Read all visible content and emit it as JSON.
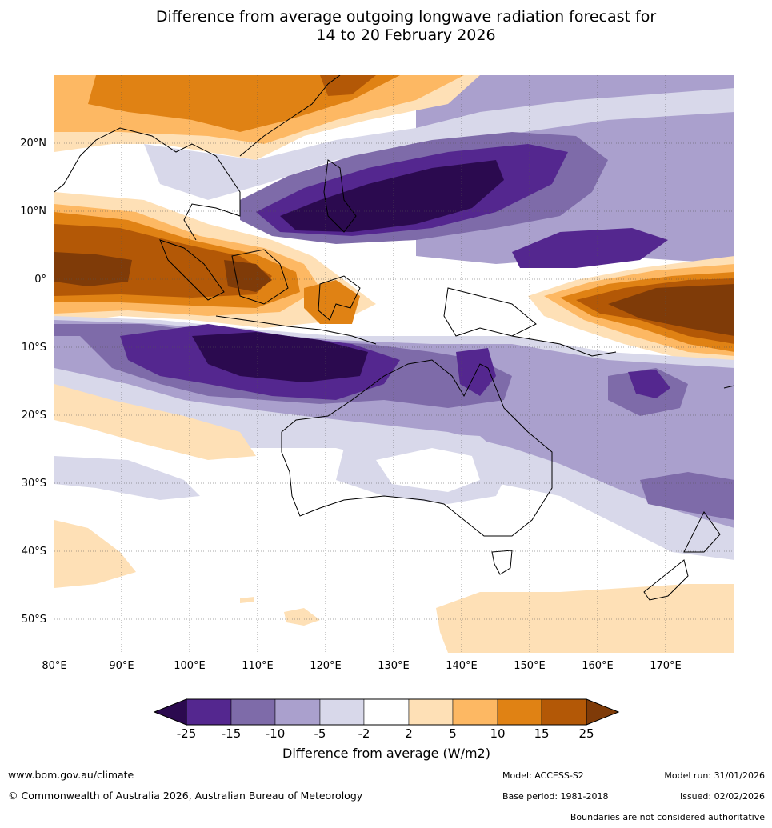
{
  "title": {
    "line1": "Difference from average outgoing longwave radiation forecast for",
    "line2": "14 to 20 February 2026"
  },
  "map": {
    "lat_ticks": [
      "20°N",
      "10°N",
      "0°",
      "10°S",
      "20°S",
      "30°S",
      "40°S",
      "50°S"
    ],
    "lon_ticks": [
      "80°E",
      "90°E",
      "100°E",
      "110°E",
      "120°E",
      "130°E",
      "140°E",
      "150°E",
      "160°E",
      "170°E"
    ]
  },
  "colorbar": {
    "label": "Difference from average (W/m2)",
    "ticks": [
      "-25",
      "-15",
      "-10",
      "-5",
      "-2",
      "2",
      "5",
      "10",
      "15",
      "25"
    ],
    "colors": [
      "#2b0a4f",
      "#54278f",
      "#7e6ba9",
      "#aaa0cd",
      "#d8d8ea",
      "#ffffff",
      "#fee0b6",
      "#fdb863",
      "#e08214",
      "#b35806",
      "#7f3b08"
    ]
  },
  "footer": {
    "url": "www.bom.gov.au/climate",
    "copyright": "© Commonwealth of Australia 2026, Australian Bureau of Meteorology",
    "model": "Model: ACCESS-S2",
    "model_run": "Model run: 31/01/2026",
    "base_period": "Base period: 1981-2018",
    "issued": "Issued: 02/02/2026",
    "disclaimer": "Boundaries are not considered authoritative"
  }
}
